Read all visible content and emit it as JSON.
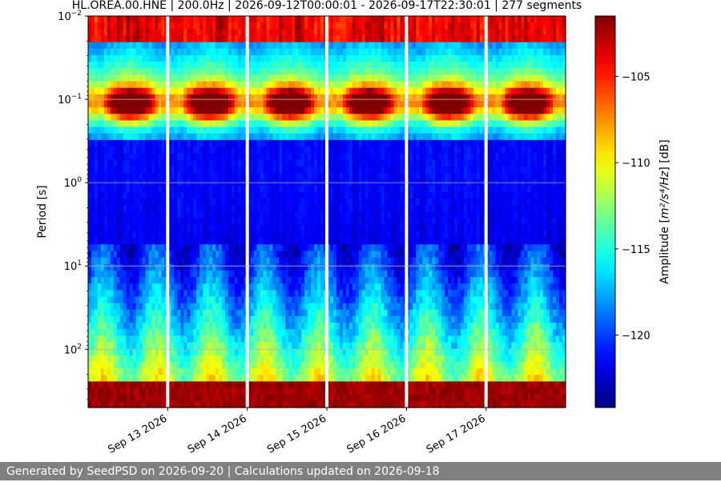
{
  "chart_data": {
    "type": "heatmap",
    "title": "HL.OREA.00.HNE | 200.0Hz | 2026-09-12T00:00:01 - 2026-09-17T22:30:01 | 277 segments",
    "ylabel": "Period [s]",
    "y_scale": "log",
    "y_inverted": true,
    "ylim": [
      0.01,
      500
    ],
    "y_ticks": [
      {
        "value": 0.01,
        "base": "10",
        "exp": "−2"
      },
      {
        "value": 0.1,
        "base": "10",
        "exp": "−1"
      },
      {
        "value": 1,
        "base": "10",
        "exp": "0"
      },
      {
        "value": 10,
        "base": "10",
        "exp": "1"
      },
      {
        "value": 100,
        "base": "10",
        "exp": "2"
      }
    ],
    "x_start": "2026-09-12T00:00",
    "x_end": "2026-09-17T23:59",
    "x_ticks": [
      {
        "date": "2026-09-13",
        "label": "Sep 13 2026"
      },
      {
        "date": "2026-09-14",
        "label": "Sep 14 2026"
      },
      {
        "date": "2026-09-15",
        "label": "Sep 15 2026"
      },
      {
        "date": "2026-09-16",
        "label": "Sep 16 2026"
      },
      {
        "date": "2026-09-17",
        "label": "Sep 17 2026"
      }
    ],
    "data_gaps": [
      "2026-09-13T00:00",
      "2026-09-14T00:00",
      "2026-09-15T00:00",
      "2026-09-16T00:00",
      "2026-09-17T00:00"
    ],
    "grid": true,
    "colormap": "jet",
    "colorbar": {
      "label_prefix": "Amplitude [",
      "label_unit": "m²/s⁴/Hz",
      "label_suffix": "] [dB]",
      "vmin": -124.2,
      "vmax": -101.5,
      "ticks": [
        {
          "value": -105,
          "label": "−105"
        },
        {
          "value": -110,
          "label": "−110"
        },
        {
          "value": -115,
          "label": "−115"
        },
        {
          "value": -120,
          "label": "−120"
        }
      ]
    },
    "grid_color": "#b0b0b0",
    "gap_color": "#ffffff"
  },
  "footer": {
    "text": "Generated by SeedPSD on 2026-09-20 | Calculations updated on 2026-09-18"
  }
}
